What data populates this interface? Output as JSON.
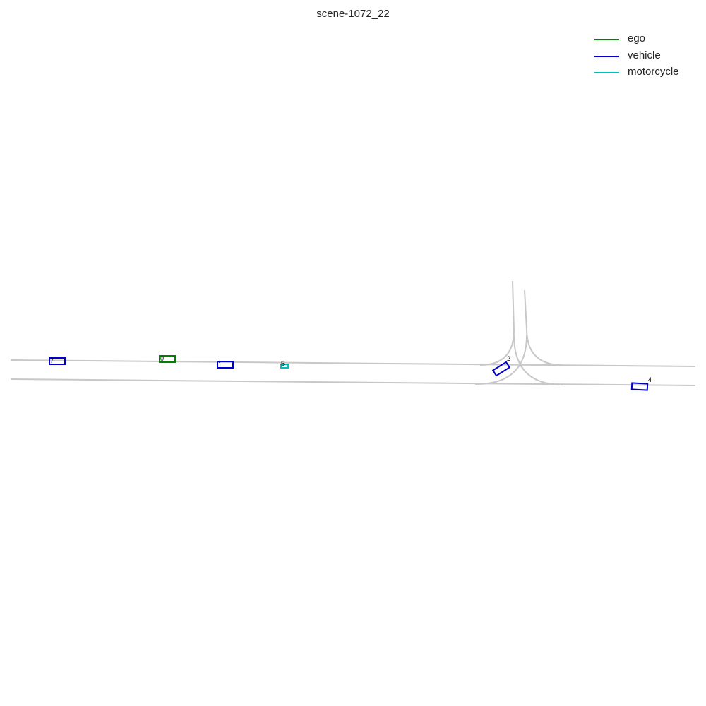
{
  "title": "scene-1072_22",
  "legend": {
    "items": [
      {
        "label": "ego",
        "color": "#008000"
      },
      {
        "label": "vehicle",
        "color": "#0000cc"
      },
      {
        "label": "motorcycle",
        "color": "#00bfbf"
      }
    ]
  },
  "map": {
    "lane_color": "#c8c8c8",
    "agents": [
      {
        "id": "0",
        "category": "ego"
      },
      {
        "id": "1",
        "category": "vehicle"
      },
      {
        "id": "2",
        "category": "vehicle"
      },
      {
        "id": "4",
        "category": "vehicle"
      },
      {
        "id": "5",
        "category": "motorcycle"
      },
      {
        "id": "7",
        "category": "vehicle"
      }
    ]
  }
}
